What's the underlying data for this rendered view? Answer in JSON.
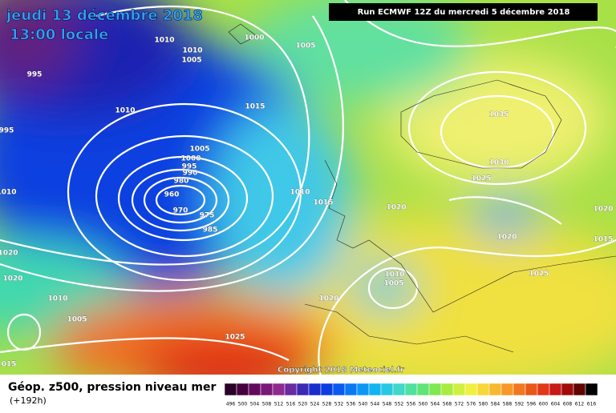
{
  "header": {
    "date": "jeudi 13 décembre 2018",
    "time": "13:00 locale",
    "run": "Run ECMWF 12Z du mercredi 5 décembre 2018"
  },
  "copyright": "Copyright 2018 Meteociel.fr",
  "footer": {
    "title": "Géop. z500, pression niveau mer",
    "lead": "(+192h)"
  },
  "isobars": [
    1010,
    1000,
    1010,
    1005,
    995,
    1005,
    1010,
    1015,
    995,
    1035,
    1005,
    1000,
    995,
    990,
    980,
    1010,
    1015,
    960,
    1030,
    1025,
    1010,
    970,
    975,
    985,
    1020,
    1020,
    1020,
    1015,
    1020,
    1020,
    1010,
    1005,
    1025,
    1020,
    1010,
    1005,
    1025,
    1015
  ],
  "scale": {
    "values": [
      496,
      500,
      504,
      508,
      512,
      516,
      520,
      524,
      528,
      532,
      536,
      540,
      544,
      548,
      552,
      556,
      560,
      564,
      568,
      572,
      576,
      580,
      584,
      588,
      592,
      596,
      600,
      604,
      608,
      612,
      616
    ],
    "colors": [
      "#2a0028",
      "#46003f",
      "#620a5c",
      "#7a1878",
      "#8f2a8f",
      "#6a2aa0",
      "#3a2ab4",
      "#1a2ccc",
      "#0a3ee0",
      "#0a5af0",
      "#0a78f4",
      "#0a98f4",
      "#10b4f0",
      "#28c8e4",
      "#40d8c8",
      "#50e0a0",
      "#60e478",
      "#80e850",
      "#a8ec40",
      "#d0f040",
      "#f0f040",
      "#f8d838",
      "#f8b830",
      "#f89828",
      "#f07820",
      "#e85818",
      "#e03818",
      "#c81818",
      "#a00a0a",
      "#600404",
      "#000000"
    ]
  }
}
